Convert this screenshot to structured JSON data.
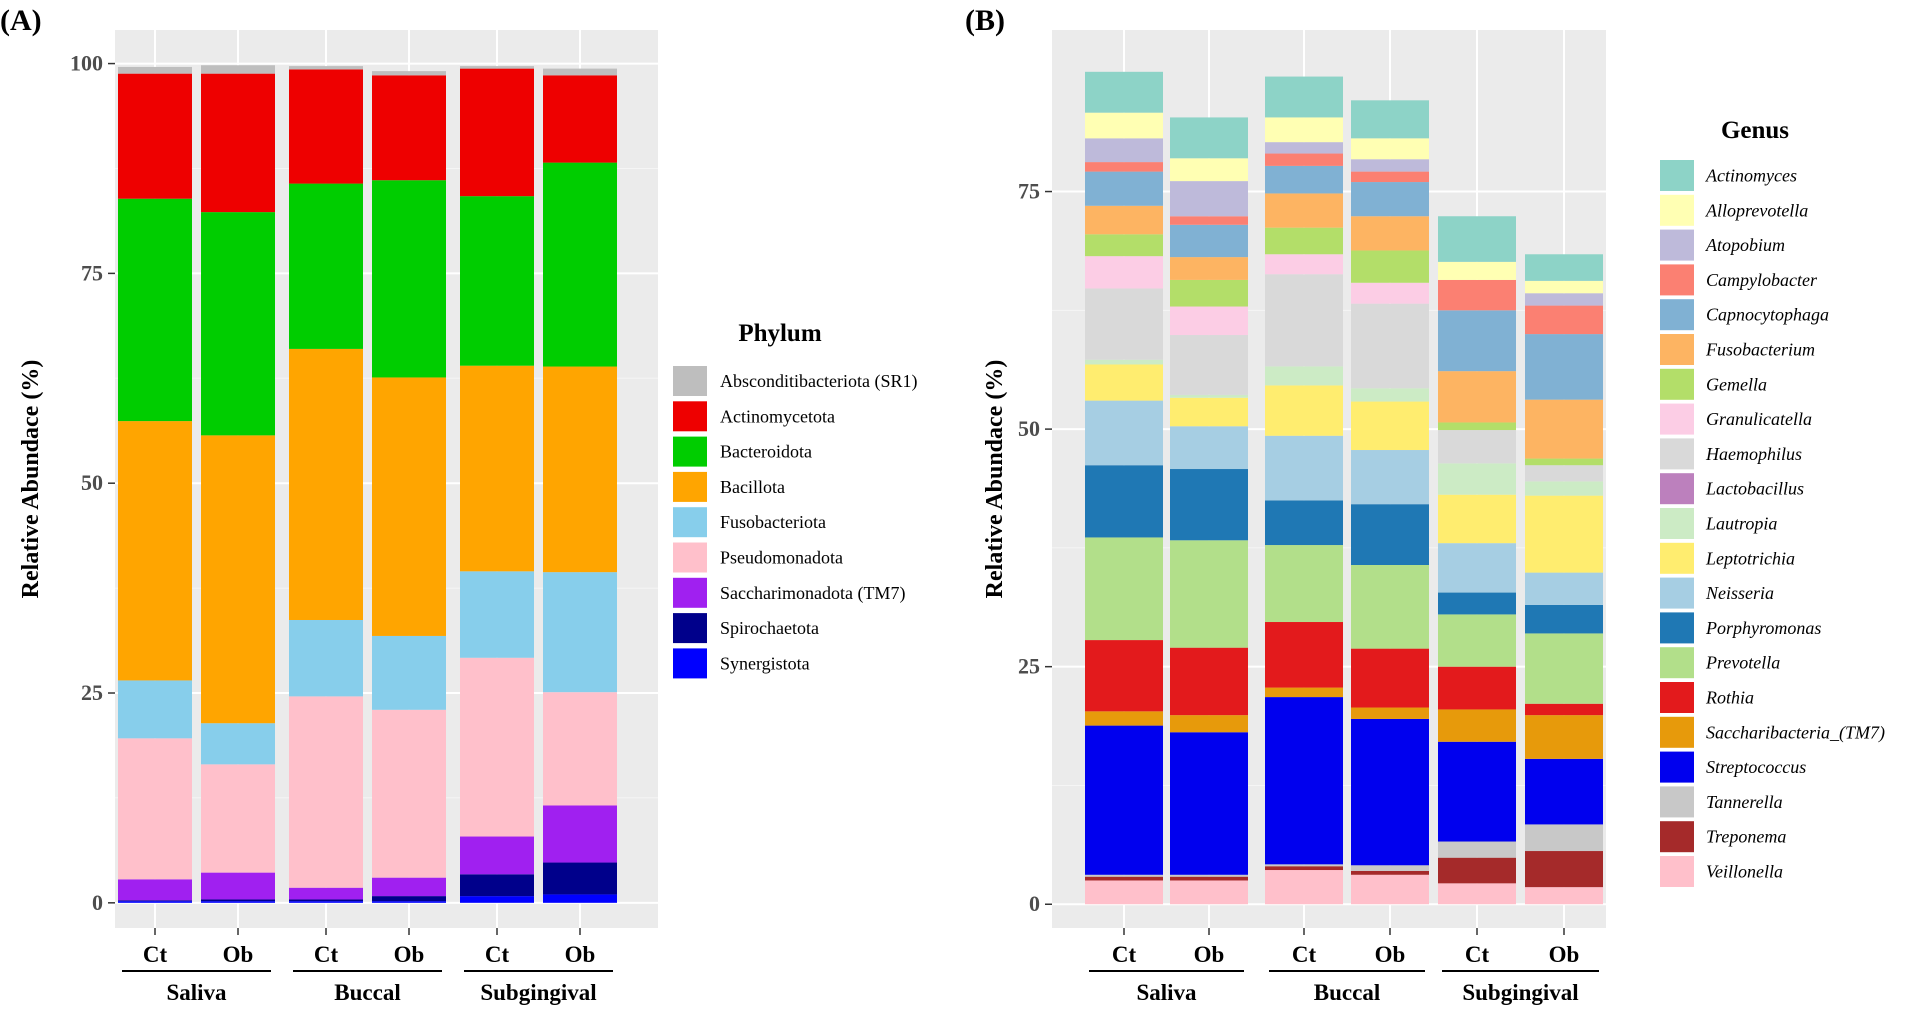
{
  "chart_data": [
    {
      "panel_label": "(A)",
      "type": "bar",
      "stacked": true,
      "categories": [
        "Ct",
        "Ob",
        "Ct",
        "Ob",
        "Ct",
        "Ob"
      ],
      "groups": [
        {
          "name": "Saliva",
          "members": [
            0,
            1
          ]
        },
        {
          "name": "Buccal",
          "members": [
            2,
            3
          ]
        },
        {
          "name": "Subgingival",
          "members": [
            4,
            5
          ]
        }
      ],
      "ylabel": "Relative Abundace (%)",
      "ylim": [
        -3,
        104
      ],
      "yticks": [
        0,
        25,
        50,
        75,
        100
      ],
      "legend_title": "Phylum",
      "legend_italic": false,
      "legend_position": "right",
      "stack_order": [
        "Synergistota",
        "Spirochaetota",
        "Saccharimonadota (TM7)",
        "Pseudomonadota",
        "Fusobacteriota",
        "Bacillota",
        "Bacteroidota",
        "Actinomycetota",
        "Absconditibacteriota (SR1)"
      ],
      "series": [
        {
          "name": "Absconditibacteriota (SR1)",
          "color": "#bebebe",
          "values": [
            0.8,
            1.0,
            0.4,
            0.5,
            0.3,
            0.8
          ]
        },
        {
          "name": "Actinomycetota",
          "color": "#ee0000",
          "values": [
            14.9,
            16.5,
            13.6,
            12.5,
            15.2,
            10.4
          ]
        },
        {
          "name": "Bacteroidota",
          "color": "#00cd00",
          "values": [
            26.5,
            26.6,
            19.7,
            23.5,
            20.2,
            24.3
          ]
        },
        {
          "name": "Bacillota",
          "color": "#ffa500",
          "values": [
            30.9,
            34.3,
            32.3,
            30.8,
            24.5,
            24.5
          ]
        },
        {
          "name": "Fusobacteriota",
          "color": "#87ceeb",
          "values": [
            6.9,
            4.9,
            9.1,
            8.8,
            10.3,
            14.3
          ]
        },
        {
          "name": "Pseudomonadota",
          "color": "#ffc0cb",
          "values": [
            16.8,
            12.9,
            22.8,
            20.0,
            21.3,
            13.5
          ]
        },
        {
          "name": "Saccharimonadota (TM7)",
          "color": "#a020f0",
          "values": [
            2.5,
            3.2,
            1.4,
            2.2,
            4.5,
            6.8
          ]
        },
        {
          "name": "Spirochaetota",
          "color": "#00008b",
          "values": [
            0.1,
            0.2,
            0.2,
            0.6,
            2.6,
            3.8
          ]
        },
        {
          "name": "Synergistota",
          "color": "#0000ff",
          "values": [
            0.2,
            0.2,
            0.2,
            0.2,
            0.8,
            1.0
          ]
        }
      ]
    },
    {
      "panel_label": "(B)",
      "type": "bar",
      "stacked": true,
      "categories": [
        "Ct",
        "Ob",
        "Ct",
        "Ob",
        "Ct",
        "Ob"
      ],
      "groups": [
        {
          "name": "Saliva",
          "members": [
            0,
            1
          ]
        },
        {
          "name": "Buccal",
          "members": [
            2,
            3
          ]
        },
        {
          "name": "Subgingival",
          "members": [
            4,
            5
          ]
        }
      ],
      "ylabel": "Relative Abundace (%)",
      "ylim": [
        -2.5,
        92
      ],
      "yticks": [
        0,
        25,
        50,
        75
      ],
      "legend_title": "Genus",
      "legend_italic": true,
      "legend_position": "right",
      "stack_order": [
        "Veillonella",
        "Treponema",
        "Tannerella",
        "Streptococcus",
        "Saccharibacteria_(TM7)",
        "Rothia",
        "Prevotella",
        "Porphyromonas",
        "Neisseria",
        "Leptotrichia",
        "Lautropia",
        "Lactobacillus",
        "Haemophilus",
        "Granulicatella",
        "Gemella",
        "Fusobacterium",
        "Capnocytophaga",
        "Campylobacter",
        "Atopobium",
        "Alloprevotella",
        "Actinomyces"
      ],
      "series": [
        {
          "name": "Actinomyces",
          "color": "#8dd3c7",
          "values": [
            4.3,
            4.3,
            4.3,
            4.0,
            4.8,
            2.8
          ]
        },
        {
          "name": "Alloprevotella",
          "color": "#ffffb3",
          "values": [
            2.7,
            2.4,
            2.6,
            2.2,
            1.9,
            1.3
          ]
        },
        {
          "name": "Atopobium",
          "color": "#bebada",
          "values": [
            2.5,
            3.7,
            1.2,
            1.3,
            0.0,
            1.3
          ]
        },
        {
          "name": "Campylobacter",
          "color": "#fb8072",
          "values": [
            1.0,
            0.9,
            1.3,
            1.1,
            3.2,
            3.0
          ]
        },
        {
          "name": "Capnocytophaga",
          "color": "#80b1d3",
          "values": [
            3.6,
            3.4,
            2.9,
            3.6,
            6.4,
            6.9
          ]
        },
        {
          "name": "Fusobacterium",
          "color": "#fdb462",
          "values": [
            3.0,
            2.4,
            3.6,
            3.6,
            5.4,
            6.2
          ]
        },
        {
          "name": "Gemella",
          "color": "#b3de69",
          "values": [
            2.3,
            2.8,
            2.8,
            3.4,
            0.8,
            0.7
          ]
        },
        {
          "name": "Granulicatella",
          "color": "#fccde5",
          "values": [
            3.4,
            3.0,
            2.1,
            2.2,
            0.0,
            0.0
          ]
        },
        {
          "name": "Haemophilus",
          "color": "#d9d9d9",
          "values": [
            7.5,
            6.3,
            9.7,
            8.9,
            3.5,
            1.7
          ]
        },
        {
          "name": "Lactobacillus",
          "color": "#bc80bd",
          "values": [
            0.0,
            0.0,
            0.0,
            0.0,
            0.0,
            0.0
          ]
        },
        {
          "name": "Lautropia",
          "color": "#ccebc5",
          "values": [
            0.5,
            0.3,
            2.0,
            1.4,
            3.3,
            1.5
          ]
        },
        {
          "name": "Leptotrichia",
          "color": "#ffed6f",
          "values": [
            3.8,
            3.0,
            5.3,
            5.1,
            5.1,
            8.1
          ]
        },
        {
          "name": "Neisseria",
          "color": "#a6cee3",
          "values": [
            6.8,
            4.5,
            6.8,
            5.7,
            5.2,
            3.4
          ]
        },
        {
          "name": "Porphyromonas",
          "color": "#1f78b4",
          "values": [
            7.6,
            7.5,
            4.7,
            6.4,
            2.3,
            3.0
          ]
        },
        {
          "name": "Prevotella",
          "color": "#b2df8a",
          "values": [
            10.8,
            11.3,
            8.1,
            8.8,
            5.5,
            7.4
          ]
        },
        {
          "name": "Rothia",
          "color": "#e31a1c",
          "values": [
            7.5,
            7.1,
            6.9,
            6.2,
            4.5,
            1.2
          ]
        },
        {
          "name": "Saccharibacteria_(TM7)",
          "color": "#e79a0b",
          "values": [
            1.5,
            1.8,
            1.0,
            1.2,
            3.4,
            4.6
          ]
        },
        {
          "name": "Streptococcus",
          "color": "#0000ee",
          "values": [
            15.7,
            15.0,
            17.6,
            15.4,
            10.5,
            6.9
          ]
        },
        {
          "name": "Tannerella",
          "color": "#c8c8c8",
          "values": [
            0.2,
            0.2,
            0.2,
            0.6,
            1.7,
            2.8
          ]
        },
        {
          "name": "Treponema",
          "color": "#a52a2a",
          "values": [
            0.4,
            0.4,
            0.4,
            0.4,
            2.7,
            3.8
          ]
        },
        {
          "name": "Veillonella",
          "color": "#ffc0cb",
          "values": [
            2.5,
            2.5,
            3.6,
            3.1,
            2.2,
            1.8
          ]
        }
      ]
    }
  ]
}
